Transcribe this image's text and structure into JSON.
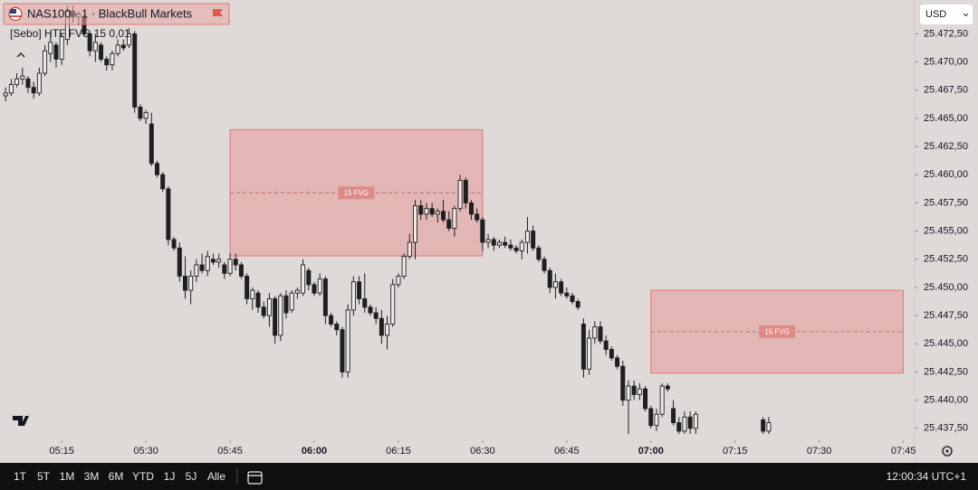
{
  "header": {
    "symbol": "NAS100 · 1 · BlackBull Markets",
    "indicator": "[Sebo] HTF FVG 15 0,01",
    "currency": "USD"
  },
  "chart_data": {
    "type": "candlestick",
    "x": [
      "05:05",
      "05:06",
      "05:07",
      "05:08",
      "05:09",
      "05:10",
      "05:11",
      "05:12",
      "05:13",
      "05:14",
      "05:15",
      "05:16",
      "05:17",
      "05:18",
      "05:19",
      "05:20",
      "05:21",
      "05:22",
      "05:23",
      "05:24",
      "05:25",
      "05:26",
      "05:27",
      "05:28",
      "05:29",
      "05:30",
      "05:31",
      "05:32",
      "05:33",
      "05:34",
      "05:35",
      "05:36",
      "05:37",
      "05:38",
      "05:39",
      "05:40",
      "05:41",
      "05:42",
      "05:43",
      "05:44",
      "05:45",
      "05:46",
      "05:47",
      "05:48",
      "05:49",
      "05:50",
      "05:51",
      "05:52",
      "05:53",
      "05:54",
      "05:55",
      "05:56",
      "05:57",
      "05:58",
      "05:59",
      "06:00",
      "06:01",
      "06:02",
      "06:03",
      "06:04",
      "06:05",
      "06:06",
      "06:07",
      "06:08",
      "06:09",
      "06:10",
      "06:11",
      "06:12",
      "06:13",
      "06:14",
      "06:15",
      "06:16",
      "06:17",
      "06:18",
      "06:19",
      "06:20",
      "06:21",
      "06:22",
      "06:23",
      "06:24",
      "06:25",
      "06:26",
      "06:27",
      "06:28",
      "06:29",
      "06:30",
      "06:31",
      "06:32",
      "06:33",
      "06:34",
      "06:35",
      "06:36",
      "06:37",
      "06:38",
      "06:39",
      "06:40",
      "06:41",
      "06:42",
      "06:43",
      "06:44",
      "06:45",
      "06:46",
      "06:47",
      "06:48",
      "06:49",
      "06:50",
      "06:51",
      "06:52",
      "06:53",
      "06:54",
      "06:55",
      "06:56",
      "06:57",
      "06:58",
      "06:59",
      "07:00",
      "07:01",
      "07:02",
      "07:03",
      "07:04",
      "07:05",
      "07:06",
      "07:07",
      "07:08",
      "07:20",
      "07:21"
    ],
    "open": [
      25467.0,
      25467.25,
      25468.0,
      25468.5,
      25468.5,
      25467.75,
      25467.25,
      25469.0,
      25470.75,
      25471.5,
      25470.25,
      25472.0,
      25474.5,
      25474.0,
      25474.0,
      25472.5,
      25471.0,
      25471.5,
      25470.25,
      25469.75,
      25470.75,
      25471.5,
      25471.5,
      25472.5,
      25466.0,
      25465.0,
      25464.5,
      25461.0,
      25460.0,
      25458.75,
      25454.25,
      25453.5,
      25451.0,
      25449.75,
      25451.0,
      25452.0,
      25451.5,
      25452.5,
      25452.25,
      25452.0,
      25451.25,
      25452.5,
      25452.0,
      25451.0,
      25449.0,
      25449.5,
      25448.25,
      25447.5,
      25449.0,
      25445.75,
      25449.25,
      25448.0,
      25449.5,
      25449.5,
      25451.5,
      25450.25,
      25449.5,
      25450.75,
      25447.5,
      25446.75,
      25446.25,
      25442.5,
      25448.0,
      25450.5,
      25449.0,
      25448.25,
      25447.75,
      25447.25,
      25445.75,
      25446.75,
      25450.25,
      25451.0,
      25452.75,
      25454.0,
      25457.25,
      25456.5,
      25457.0,
      25456.5,
      25456.75,
      25456.0,
      25455.25,
      25457.0,
      25459.5,
      25457.5,
      25456.5,
      25456.0,
      25454.0,
      25454.25,
      25453.75,
      25454.0,
      25453.75,
      25453.5,
      25453.25,
      25454.0,
      25455.0,
      25453.5,
      25452.5,
      25451.5,
      25450.0,
      25450.5,
      25449.5,
      25449.25,
      25448.75,
      25446.75,
      25442.75,
      25445.5,
      25446.5,
      25445.25,
      25444.5,
      25443.75,
      25443.0,
      25440.0,
      25441.25,
      25440.5,
      25441.0,
      25439.25,
      25437.75,
      25438.75,
      25441.25,
      25439.25,
      25438.0,
      25437.25,
      25438.5,
      25437.5,
      25438.25,
      25437.25
    ],
    "high": [
      25467.75,
      25468.5,
      25469.0,
      25469.5,
      25468.75,
      25468.25,
      25469.5,
      25471.5,
      25472.5,
      25471.75,
      25472.5,
      25475.0,
      25475.0,
      25474.5,
      25474.25,
      25472.75,
      25472.5,
      25471.75,
      25470.5,
      25471.0,
      25472.0,
      25472.0,
      25473.0,
      25472.75,
      25466.25,
      25465.75,
      25465.5,
      25461.25,
      25460.25,
      25459.0,
      25454.5,
      25454.0,
      25452.75,
      25451.5,
      25452.5,
      25453.0,
      25453.25,
      25453.0,
      25453.0,
      25452.25,
      25453.0,
      25453.0,
      25452.25,
      25451.25,
      25450.0,
      25449.75,
      25448.75,
      25449.5,
      25449.25,
      25449.5,
      25449.75,
      25449.75,
      25450.0,
      25452.5,
      25451.75,
      25450.5,
      25451.25,
      25451.0,
      25447.75,
      25447.0,
      25446.5,
      25448.5,
      25451.0,
      25451.0,
      25451.25,
      25448.5,
      25448.25,
      25448.0,
      25447.5,
      25450.75,
      25451.25,
      25453.0,
      25454.75,
      25457.75,
      25457.75,
      25457.5,
      25457.5,
      25457.0,
      25457.75,
      25456.75,
      25457.25,
      25460.0,
      25459.75,
      25457.75,
      25457.0,
      25456.25,
      25454.75,
      25454.5,
      25454.25,
      25454.5,
      25454.25,
      25453.75,
      25454.25,
      25456.25,
      25455.5,
      25453.75,
      25452.75,
      25451.75,
      25451.25,
      25450.75,
      25450.0,
      25449.5,
      25449.0,
      25447.25,
      25446.25,
      25447.0,
      25447.0,
      25445.75,
      25444.75,
      25444.0,
      25443.5,
      25441.75,
      25441.75,
      25441.5,
      25441.25,
      25439.5,
      25439.25,
      25441.5,
      25441.5,
      25440.0,
      25438.5,
      25439.0,
      25439.0,
      25439.0,
      25438.5,
      25438.5
    ],
    "low": [
      25466.5,
      25467.0,
      25467.75,
      25468.0,
      25467.25,
      25466.75,
      25467.0,
      25468.75,
      25470.0,
      25469.5,
      25469.75,
      25471.5,
      25473.5,
      25473.25,
      25472.25,
      25470.5,
      25470.0,
      25470.0,
      25469.25,
      25469.25,
      25470.5,
      25471.0,
      25471.25,
      25465.5,
      25464.75,
      25464.5,
      25460.75,
      25459.75,
      25458.5,
      25453.75,
      25453.25,
      25450.5,
      25449.0,
      25448.5,
      25450.5,
      25451.25,
      25451.0,
      25452.0,
      25451.75,
      25450.75,
      25451.0,
      25451.5,
      25450.75,
      25448.5,
      25448.0,
      25447.75,
      25447.25,
      25446.5,
      25445.0,
      25445.25,
      25447.25,
      25447.75,
      25449.0,
      25449.25,
      25449.75,
      25449.25,
      25449.25,
      25446.75,
      25446.5,
      25445.75,
      25442.0,
      25442.0,
      25447.5,
      25448.5,
      25447.75,
      25447.5,
      25446.75,
      25445.0,
      25444.5,
      25446.5,
      25450.0,
      25450.75,
      25452.5,
      25452.5,
      25456.0,
      25456.0,
      25456.25,
      25455.75,
      25455.75,
      25455.0,
      25454.5,
      25456.75,
      25457.0,
      25456.0,
      25455.75,
      25453.25,
      25453.5,
      25453.25,
      25453.5,
      25453.5,
      25453.25,
      25453.0,
      25452.5,
      25453.0,
      25453.25,
      25452.25,
      25451.25,
      25449.5,
      25449.0,
      25449.25,
      25449.0,
      25448.5,
      25448.0,
      25442.0,
      25442.25,
      25445.0,
      25445.0,
      25444.0,
      25443.5,
      25442.75,
      25439.5,
      25437.0,
      25440.0,
      25440.0,
      25439.0,
      25437.5,
      25437.25,
      25438.5,
      25440.75,
      25437.75,
      25437.0,
      25437.0,
      25437.0,
      25437.0,
      25437.0,
      25437.0
    ],
    "close": [
      25467.25,
      25468.0,
      25468.5,
      25468.75,
      25467.75,
      25467.25,
      25469.0,
      25471.0,
      25471.75,
      25470.25,
      25472.25,
      25474.5,
      25474.0,
      25474.25,
      25472.5,
      25471.0,
      25471.75,
      25470.25,
      25469.75,
      25470.75,
      25471.5,
      25471.25,
      25472.5,
      25466.0,
      25465.0,
      25465.5,
      25461.0,
      25460.0,
      25458.75,
      25454.25,
      25453.5,
      25451.0,
      25449.75,
      25451.0,
      25452.0,
      25451.5,
      25452.75,
      25452.25,
      25452.5,
      25451.25,
      25452.5,
      25452.0,
      25451.0,
      25449.0,
      25449.75,
      25448.25,
      25447.5,
      25449.0,
      25445.75,
      25449.25,
      25447.75,
      25449.5,
      25449.75,
      25452.0,
      25450.25,
      25449.5,
      25450.75,
      25447.5,
      25446.75,
      25446.25,
      25442.5,
      25448.0,
      25450.5,
      25449.0,
      25448.25,
      25447.75,
      25447.25,
      25445.75,
      25446.75,
      25450.25,
      25451.0,
      25452.75,
      25454.0,
      25457.25,
      25456.5,
      25457.0,
      25456.5,
      25456.75,
      25456.0,
      25455.25,
      25457.0,
      25459.5,
      25457.5,
      25456.5,
      25456.0,
      25454.0,
      25454.25,
      25453.75,
      25454.0,
      25453.75,
      25453.5,
      25453.25,
      25454.0,
      25455.0,
      25453.5,
      25452.5,
      25451.5,
      25450.0,
      25450.5,
      25449.5,
      25449.25,
      25448.75,
      25448.25,
      25442.75,
      25445.5,
      25446.5,
      25445.25,
      25444.5,
      25443.75,
      25443.0,
      25440.0,
      25441.25,
      25440.5,
      25441.0,
      25439.25,
      25437.75,
      25438.75,
      25441.25,
      25441.0,
      25438.0,
      25437.25,
      25438.5,
      25437.5,
      25438.75,
      25437.25,
      25438.0
    ],
    "up_color": "#f0ecea",
    "down_color": "#1f1f1f",
    "xlim": [
      "05:04",
      "07:47"
    ],
    "xticks": [
      "05:15",
      "05:30",
      "05:45",
      "06:00",
      "06:15",
      "06:30",
      "06:45",
      "07:00",
      "07:15",
      "07:30",
      "07:45"
    ],
    "ylim": [
      25436.6,
      25475.5
    ],
    "yticks": [
      {
        "value": 25437.5,
        "label": "25.437,50"
      },
      {
        "value": 25440,
        "label": "25.440,00"
      },
      {
        "value": 25442.5,
        "label": "25.442,50"
      },
      {
        "value": 25445,
        "label": "25.445,00"
      },
      {
        "value": 25447.5,
        "label": "25.447,50"
      },
      {
        "value": 25450,
        "label": "25.450,00"
      },
      {
        "value": 25452.5,
        "label": "25.452,50"
      },
      {
        "value": 25455,
        "label": "25.455,00"
      },
      {
        "value": 25457.5,
        "label": "25.457,50"
      },
      {
        "value": 25460,
        "label": "25.460,00"
      },
      {
        "value": 25462.5,
        "label": "25.462,50"
      },
      {
        "value": 25465,
        "label": "25.465,00"
      },
      {
        "value": 25467.5,
        "label": "25.467,50"
      },
      {
        "value": 25470,
        "label": "25.470,00"
      },
      {
        "value": 25472.5,
        "label": "25.472,50"
      }
    ],
    "annotations": [
      {
        "text": "15 FVG",
        "x0": "05:45",
        "x1": "06:30",
        "y0": 25452.8,
        "y1": 25464.0
      },
      {
        "text": "15 FVG",
        "x0": "07:00",
        "x1": "07:45",
        "y0": 25442.4,
        "y1": 25449.75
      }
    ]
  },
  "toolbar": {
    "ranges": [
      "1T",
      "5T",
      "1M",
      "3M",
      "6M",
      "YTD",
      "1J",
      "5J",
      "Alle"
    ],
    "clock": "12:00:34 UTC+1"
  }
}
